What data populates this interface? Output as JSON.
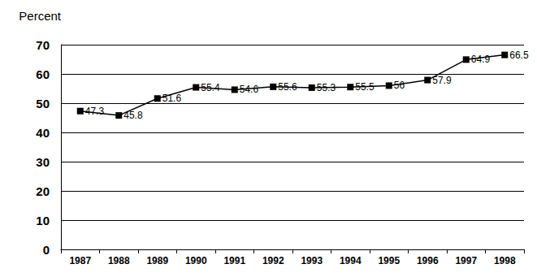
{
  "chart_data": {
    "type": "line",
    "ylabel": "Percent",
    "categories": [
      "1987",
      "1988",
      "1989",
      "1990",
      "1991",
      "1992",
      "1993",
      "1994",
      "1995",
      "1996",
      "1997",
      "1998"
    ],
    "values": [
      47.3,
      45.8,
      51.6,
      55.4,
      54.6,
      55.6,
      55.3,
      55.5,
      56,
      57.9,
      64.9,
      66.5
    ],
    "color": "#000000",
    "marker": "square",
    "line_style": "solid",
    "ylim": [
      0,
      70
    ],
    "yticks": [
      0,
      10,
      20,
      30,
      40,
      50,
      60,
      70
    ],
    "grid": true,
    "data_labels": true
  }
}
